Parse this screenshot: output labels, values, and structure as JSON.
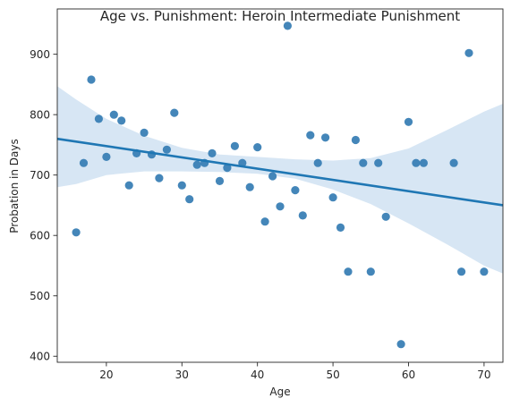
{
  "chart_data": {
    "type": "scatter",
    "title": "Age vs. Punishment: Heroin Intermediate Punishment",
    "xlabel": "Age",
    "ylabel": "Probation in Days",
    "xlim": [
      13.5,
      72.5
    ],
    "ylim": [
      390,
      975
    ],
    "xticks": [
      20,
      30,
      40,
      50,
      60,
      70
    ],
    "yticks": [
      400,
      500,
      600,
      700,
      800,
      900
    ],
    "grid": false,
    "colors": {
      "points": "#3a7fb5",
      "line": "#1f77b4",
      "band": "#c6dbef"
    },
    "points": [
      {
        "x": 16,
        "y": 605
      },
      {
        "x": 17,
        "y": 720
      },
      {
        "x": 18,
        "y": 858
      },
      {
        "x": 19,
        "y": 793
      },
      {
        "x": 20,
        "y": 730
      },
      {
        "x": 21,
        "y": 800
      },
      {
        "x": 22,
        "y": 790
      },
      {
        "x": 23,
        "y": 683
      },
      {
        "x": 24,
        "y": 736
      },
      {
        "x": 25,
        "y": 770
      },
      {
        "x": 26,
        "y": 734
      },
      {
        "x": 27,
        "y": 695
      },
      {
        "x": 28,
        "y": 742
      },
      {
        "x": 29,
        "y": 803
      },
      {
        "x": 30,
        "y": 683
      },
      {
        "x": 31,
        "y": 660
      },
      {
        "x": 32,
        "y": 717
      },
      {
        "x": 33,
        "y": 720
      },
      {
        "x": 34,
        "y": 736
      },
      {
        "x": 35,
        "y": 690
      },
      {
        "x": 36,
        "y": 712
      },
      {
        "x": 37,
        "y": 748
      },
      {
        "x": 38,
        "y": 720
      },
      {
        "x": 39,
        "y": 680
      },
      {
        "x": 40,
        "y": 746
      },
      {
        "x": 41,
        "y": 623
      },
      {
        "x": 42,
        "y": 698
      },
      {
        "x": 43,
        "y": 648
      },
      {
        "x": 44,
        "y": 947
      },
      {
        "x": 45,
        "y": 675
      },
      {
        "x": 46,
        "y": 633
      },
      {
        "x": 47,
        "y": 766
      },
      {
        "x": 48,
        "y": 720
      },
      {
        "x": 49,
        "y": 762
      },
      {
        "x": 50,
        "y": 663
      },
      {
        "x": 51,
        "y": 613
      },
      {
        "x": 52,
        "y": 540
      },
      {
        "x": 53,
        "y": 758
      },
      {
        "x": 54,
        "y": 720
      },
      {
        "x": 55,
        "y": 540
      },
      {
        "x": 56,
        "y": 720
      },
      {
        "x": 57,
        "y": 631
      },
      {
        "x": 59,
        "y": 420
      },
      {
        "x": 60,
        "y": 788
      },
      {
        "x": 61,
        "y": 720
      },
      {
        "x": 62,
        "y": 720
      },
      {
        "x": 66,
        "y": 720
      },
      {
        "x": 67,
        "y": 540
      },
      {
        "x": 68,
        "y": 902
      },
      {
        "x": 70,
        "y": 540
      }
    ],
    "regression": {
      "x": [
        13.5,
        72.5
      ],
      "y": [
        760,
        650
      ]
    },
    "confidence_band": {
      "x": [
        13.5,
        16,
        20,
        25,
        30,
        35,
        40,
        45,
        50,
        55,
        60,
        65,
        70,
        72.5
      ],
      "upper": [
        847,
        825,
        793,
        765,
        745,
        734,
        730,
        726,
        724,
        728,
        744,
        774,
        805,
        818
      ],
      "lower": [
        680,
        685,
        700,
        706,
        706,
        705,
        702,
        694,
        676,
        652,
        620,
        586,
        550,
        537
      ]
    }
  }
}
